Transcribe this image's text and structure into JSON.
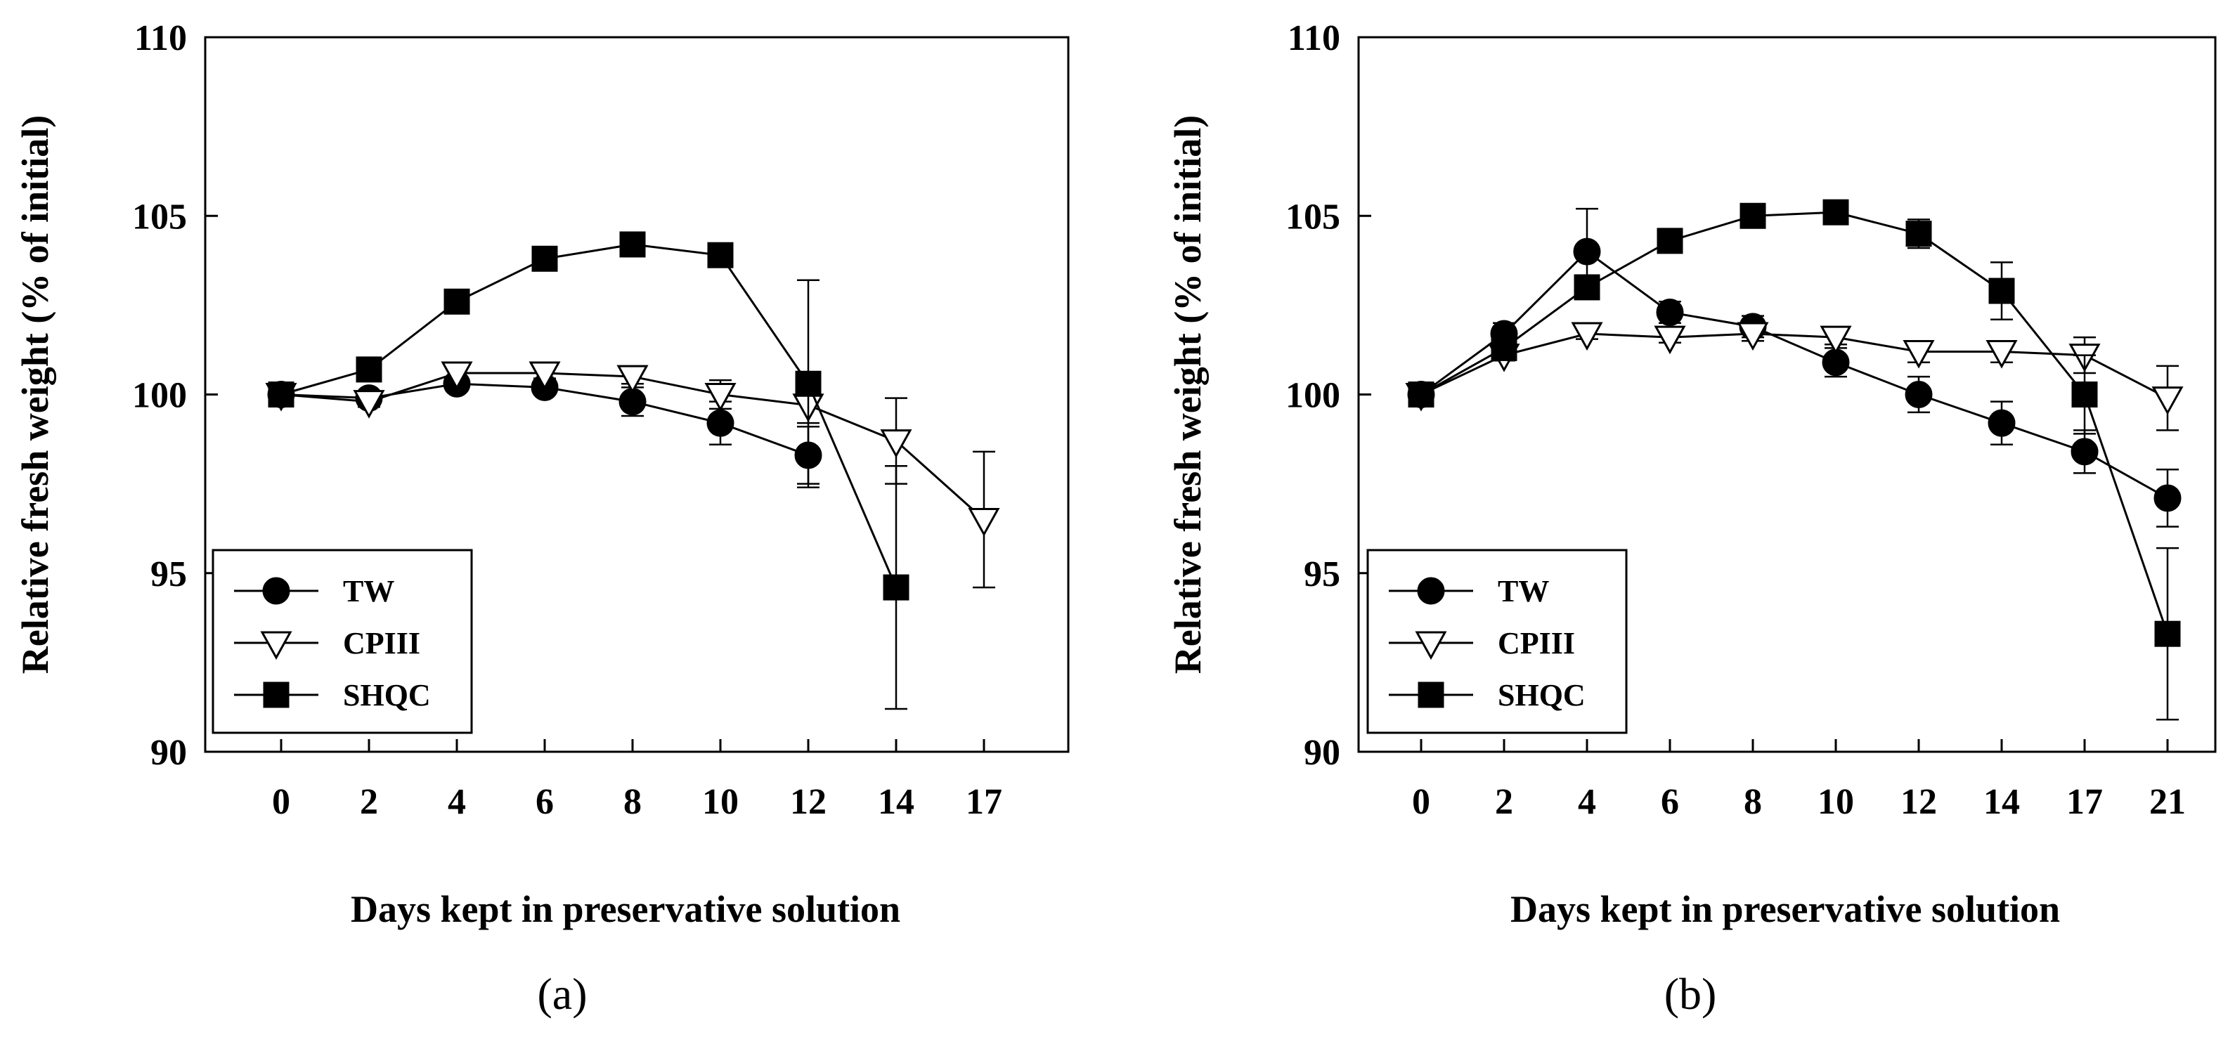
{
  "chart_data": [
    {
      "type": "line",
      "panel_label": "(a)",
      "categories": [
        "0",
        "2",
        "4",
        "6",
        "8",
        "10",
        "12",
        "14",
        "17"
      ],
      "xlabel": "Days kept in preservative solution",
      "ylabel": "Relative fresh weight (% of initial)",
      "ylim": [
        90,
        110
      ],
      "yticks": [
        "90",
        "95",
        "100",
        "105",
        "110"
      ],
      "grid": false,
      "legend_position": "bottom-left",
      "series": [
        {
          "name": "TW",
          "marker": "circle",
          "values": [
            100.0,
            99.9,
            100.3,
            100.2,
            99.8,
            99.2,
            98.3,
            null,
            null
          ],
          "errors": [
            0.15,
            0.15,
            0.2,
            0.2,
            0.4,
            0.6,
            0.8,
            null,
            null
          ]
        },
        {
          "name": "CPIII",
          "marker": "triangle-down",
          "values": [
            100.0,
            99.8,
            100.6,
            100.6,
            100.5,
            100.0,
            99.7,
            98.7,
            96.5
          ],
          "errors": [
            0.1,
            0.15,
            0.15,
            0.15,
            0.2,
            0.4,
            0.5,
            1.2,
            1.9
          ]
        },
        {
          "name": "SHQC",
          "marker": "square",
          "values": [
            100.0,
            100.7,
            102.6,
            103.8,
            104.2,
            103.9,
            100.3,
            94.6,
            null
          ],
          "errors": [
            0.1,
            0.15,
            0.15,
            0.15,
            0.2,
            0.3,
            2.9,
            3.4,
            null
          ]
        }
      ]
    },
    {
      "type": "line",
      "panel_label": "(b)",
      "categories": [
        "0",
        "2",
        "4",
        "6",
        "8",
        "10",
        "12",
        "14",
        "17",
        "21"
      ],
      "xlabel": "Days kept in preservative solution",
      "ylabel": "Relative fresh weight (% of initial)",
      "ylim": [
        90,
        110
      ],
      "yticks": [
        "90",
        "95",
        "100",
        "105",
        "110"
      ],
      "grid": false,
      "legend_position": "bottom-left",
      "series": [
        {
          "name": "TW",
          "marker": "circle",
          "values": [
            100.0,
            101.7,
            104.0,
            102.3,
            101.9,
            100.9,
            100.0,
            99.2,
            98.4,
            97.1
          ],
          "errors": [
            0.1,
            0.3,
            1.2,
            0.3,
            0.3,
            0.4,
            0.5,
            0.6,
            0.6,
            0.8
          ]
        },
        {
          "name": "CPIII",
          "marker": "triangle-down",
          "values": [
            100.0,
            101.1,
            101.7,
            101.6,
            101.7,
            101.6,
            101.2,
            101.2,
            101.1,
            99.9
          ],
          "errors": [
            0.1,
            0.15,
            0.15,
            0.15,
            0.2,
            0.2,
            0.3,
            0.3,
            0.5,
            0.9
          ]
        },
        {
          "name": "SHQC",
          "marker": "square",
          "values": [
            100.0,
            101.3,
            103.0,
            104.3,
            105.0,
            105.1,
            104.5,
            102.9,
            100.0,
            93.3
          ],
          "errors": [
            0.1,
            0.2,
            0.2,
            0.2,
            0.2,
            0.3,
            0.4,
            0.8,
            1.1,
            2.4
          ]
        }
      ]
    }
  ]
}
